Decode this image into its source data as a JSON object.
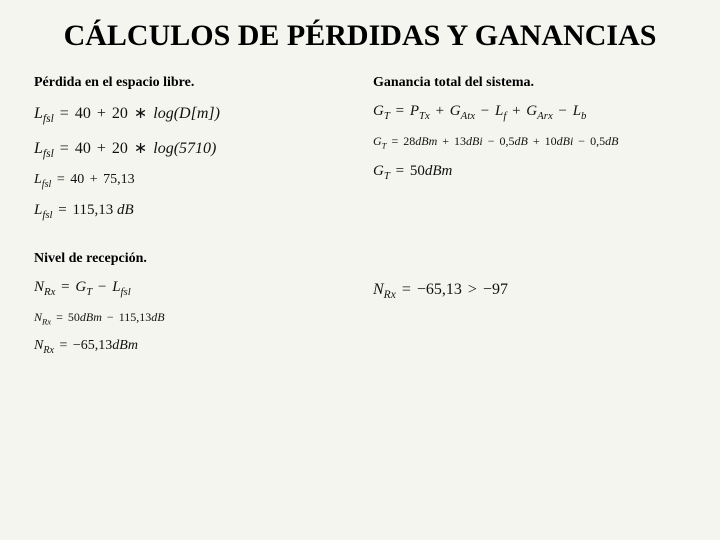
{
  "title": "CÁLCULOS DE PÉRDIDAS Y GANANCIAS",
  "left": {
    "heading": "Pérdida en el espacio libre.",
    "eq1_lhs": "L",
    "eq1_sub": "fsl",
    "eq1_rhs_a": "40",
    "eq1_rhs_b": "20",
    "eq1_rhs_c": "log(D[m])",
    "eq2_lhs": "L",
    "eq2_sub": "fsl",
    "eq2_rhs_a": "40",
    "eq2_rhs_b": "20",
    "eq2_rhs_c": "log(5710)",
    "eq3_lhs": "L",
    "eq3_sub": "fsl",
    "eq3_rhs_a": "40",
    "eq3_rhs_b": "75,13",
    "eq4_lhs": "L",
    "eq4_sub": "fsl",
    "eq4_val": "115,13",
    "eq4_unit": "dB"
  },
  "right": {
    "heading": "Ganancia total del sistema.",
    "eq1_lhs": "G",
    "eq1_sub": "T",
    "eq1_t1": "P",
    "eq1_t1s": "Tx",
    "eq1_t2": "G",
    "eq1_t2s": "Atx",
    "eq1_t3": "L",
    "eq1_t3s": "f",
    "eq1_t4": "G",
    "eq1_t4s": "Arx",
    "eq1_t5": "L",
    "eq1_t5s": "b",
    "eq2_v1": "28",
    "eq2_u1": "dBm",
    "eq2_v2": "13",
    "eq2_u2": "dBi",
    "eq2_v3": "0,5",
    "eq2_u3": "dB",
    "eq2_v4": "10",
    "eq2_u4": "dBi",
    "eq2_v5": "0,5",
    "eq2_u5": "dB",
    "eq3_val": "50",
    "eq3_unit": "dBm"
  },
  "lower_left": {
    "heading": "Nivel de recepción.",
    "eq1_lhs": "N",
    "eq1_sub": "Rx",
    "eq1_r1": "G",
    "eq1_r1s": "T",
    "eq1_r2": "L",
    "eq1_r2s": "fsl",
    "eq2_v1": "50",
    "eq2_u1": "dBm",
    "eq2_v2": "115,13",
    "eq2_u2": "dB",
    "eq3_val": "−65,13",
    "eq3_unit": "dBm"
  },
  "lower_right": {
    "eq_lhs": "N",
    "eq_sub": "Rx",
    "eq_val1": "−65,13",
    "eq_cmp": ">",
    "eq_val2": "−97"
  }
}
